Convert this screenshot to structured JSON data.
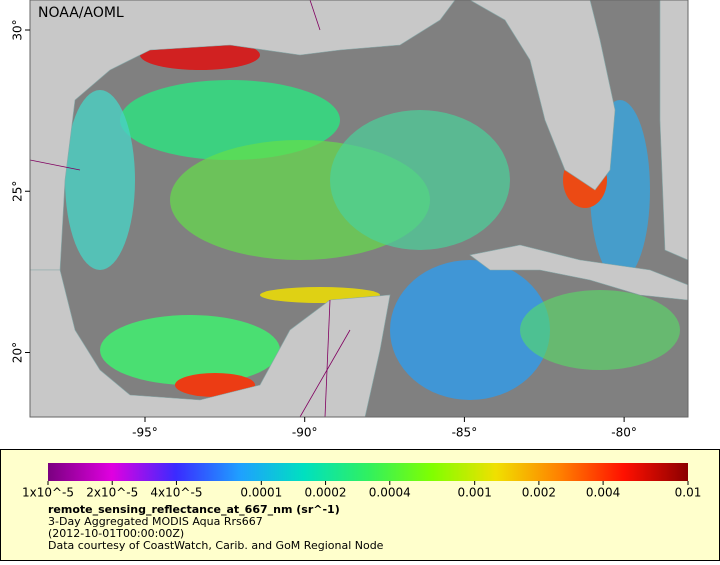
{
  "map": {
    "attribution": "NOAA/AOML",
    "lon_range": [
      -98.6,
      -78.0
    ],
    "lat_range": [
      18.0,
      30.93
    ],
    "lon_ticks": [
      {
        "value": -95,
        "label": "-95°"
      },
      {
        "value": -90,
        "label": "-90°"
      },
      {
        "value": -85,
        "label": "-85°"
      },
      {
        "value": -80,
        "label": "-80°"
      }
    ],
    "lat_ticks": [
      {
        "value": 30,
        "label": "30°"
      },
      {
        "value": 25,
        "label": "25°"
      },
      {
        "value": 20,
        "label": "20°"
      }
    ]
  },
  "colorbar": {
    "range": [
      1e-05,
      0.01
    ],
    "scale": "log",
    "colors": [
      "#7a0080",
      "#e000e0",
      "#3a2bff",
      "#1fa0ff",
      "#00e0c0",
      "#30f060",
      "#80ff00",
      "#f0e000",
      "#ff8000",
      "#ff1000",
      "#8b0000"
    ],
    "ticks": [
      {
        "value": 1e-05,
        "label": "1x10^-5"
      },
      {
        "value": 2e-05,
        "label": "2x10^-5"
      },
      {
        "value": 4e-05,
        "label": "4x10^-5"
      },
      0.0001,
      0.0002,
      0.0004,
      0.001,
      0.002,
      0.004,
      0.01
    ],
    "title": "remote_sensing_reflectance_at_667_nm (sr^-1)",
    "lines": [
      "3-Day Aggregated MODIS Aqua Rrs667",
      "(2012-10-01T00:00:00Z)",
      "Data courtesy of CoastWatch, Carib. and GoM Regional Node"
    ]
  }
}
